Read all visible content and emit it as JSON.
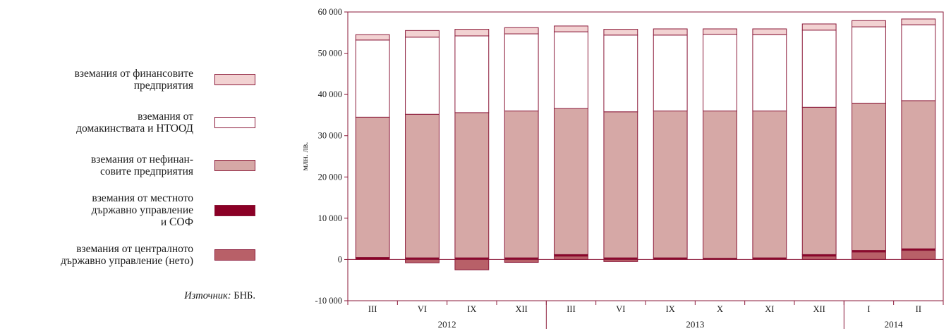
{
  "chart_data": {
    "type": "bar",
    "stacked": true,
    "ylabel": "млн. лв.",
    "ylim": [
      -10000,
      60000
    ],
    "yticks": [
      -10000,
      0,
      10000,
      20000,
      30000,
      40000,
      50000,
      60000
    ],
    "ytick_labels": [
      "-10 000",
      "0",
      "10 000",
      "20 000",
      "30 000",
      "40 000",
      "50 000",
      "60 000"
    ],
    "categories": [
      "III",
      "VI",
      "IX",
      "XII",
      "III",
      "VI",
      "IX",
      "X",
      "XI",
      "XII",
      "I",
      "II"
    ],
    "year_groups": [
      {
        "label": "2012",
        "start": 0,
        "end": 3
      },
      {
        "label": "2013",
        "start": 4,
        "end": 9
      },
      {
        "label": "2014",
        "start": 10,
        "end": 11
      }
    ],
    "series": [
      {
        "name": "вземания от централното държавно управление (нето)",
        "color": "#b86068",
        "values": [
          0,
          -800,
          -2500,
          -700,
          800,
          -500,
          0,
          0,
          0,
          800,
          1800,
          2200
        ]
      },
      {
        "name": "вземания от местното държавно управление и СОФ",
        "color": "#8b0026",
        "values": [
          500,
          400,
          400,
          400,
          400,
          400,
          400,
          300,
          400,
          400,
          400,
          400
        ]
      },
      {
        "name": "вземания от нефинансовите предприятия",
        "color": "#d6a8a6",
        "values": [
          34000,
          34800,
          35200,
          35600,
          35400,
          35400,
          35600,
          35700,
          35600,
          35700,
          35700,
          35900
        ]
      },
      {
        "name": "вземания от домакинствата и НТООД",
        "color": "#ffffff",
        "values": [
          18700,
          18700,
          18600,
          18700,
          18600,
          18600,
          18400,
          18600,
          18500,
          18700,
          18500,
          18400
        ]
      },
      {
        "name": "вземания от финансовите предприятия",
        "color": "#f2d2d2",
        "values": [
          1300,
          1600,
          1600,
          1500,
          1400,
          1400,
          1500,
          1300,
          1400,
          1500,
          1500,
          1400
        ]
      }
    ]
  },
  "legend": [
    {
      "text": "вземания от финансовите\nпредприятия",
      "color": "#f2d2d2",
      "icon": "legend-swatch"
    },
    {
      "text": "вземания от\nдомакинствата и НТООД",
      "color": "#ffffff",
      "icon": "legend-swatch"
    },
    {
      "text": "вземания от нефинан-\nсовите предприятия",
      "color": "#d6a8a6",
      "icon": "legend-swatch"
    },
    {
      "text": "вземания от местното\nдържавно управление\nи СОФ",
      "color": "#8b0026",
      "icon": "legend-swatch"
    },
    {
      "text": "вземания от централното\nдържавно управление (нето)",
      "color": "#b86068",
      "icon": "legend-swatch"
    }
  ],
  "source": {
    "label": "Източник:",
    "value": "БНБ."
  },
  "colors": {
    "border": "#8b1a3a",
    "axis": "#8b1a3a"
  }
}
